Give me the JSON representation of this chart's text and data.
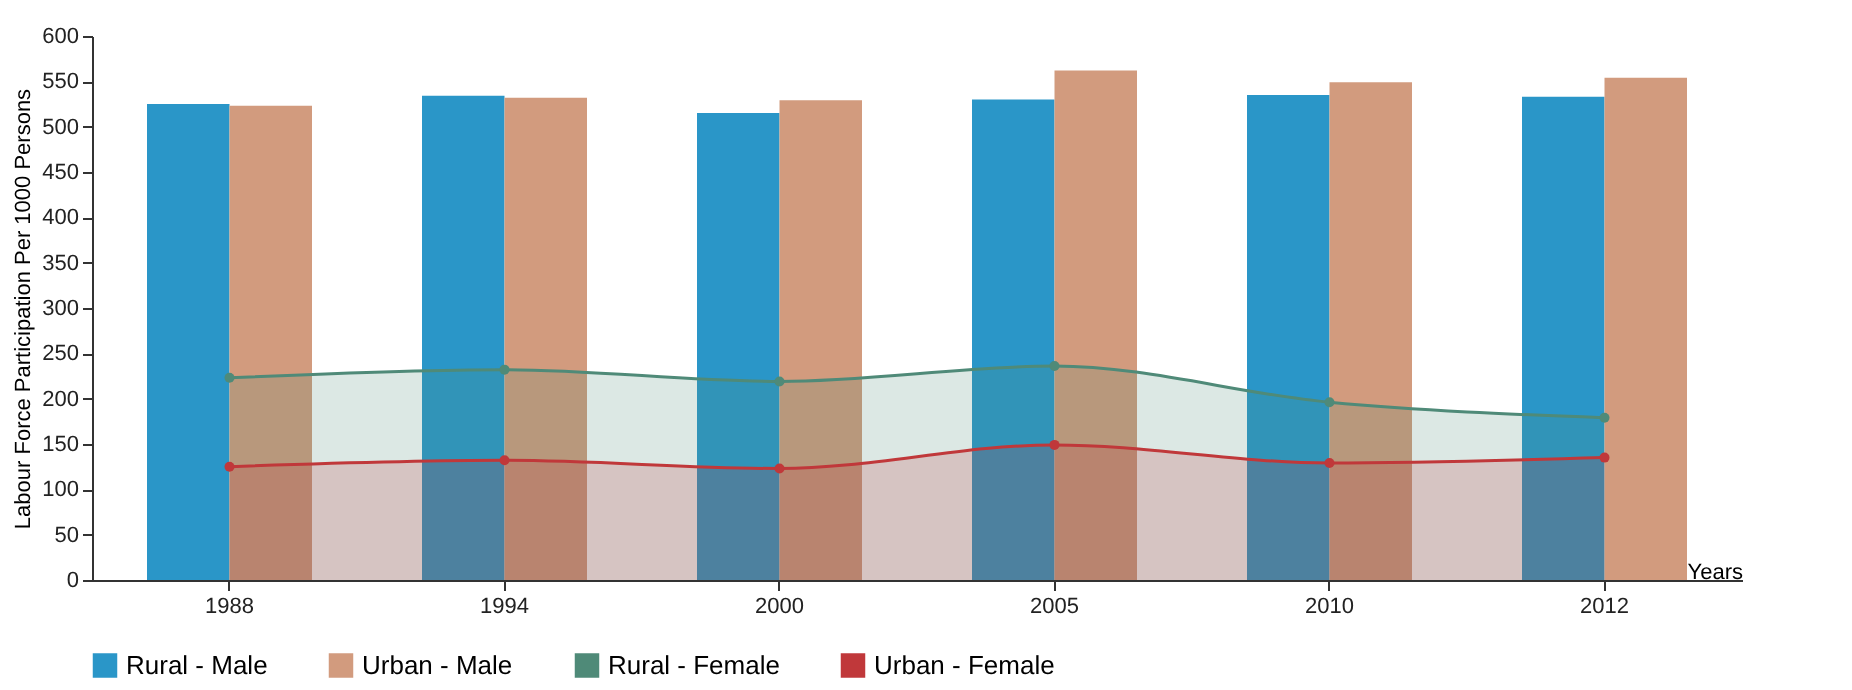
{
  "chart_data": {
    "type": "bar",
    "xlabel": "Years",
    "ylabel": "Labour Force Participation Per 1000 Persons",
    "categories": [
      "1988",
      "1994",
      "2000",
      "2005",
      "2010",
      "2012"
    ],
    "series": [
      {
        "name": "Rural - Male",
        "color": "#2a96c8",
        "values": [
          525,
          534,
          515,
          530,
          535,
          533
        ]
      },
      {
        "name": "Urban - Male",
        "color": "#d29b7e",
        "values": [
          523,
          532,
          529,
          562,
          549,
          554
        ]
      },
      {
        "name": "Rural - Female",
        "type": "area",
        "color": "#4f8a78",
        "values": [
          223,
          232,
          219,
          236,
          196,
          179
        ]
      },
      {
        "name": "Urban - Female",
        "type": "area",
        "color": "#c0383a",
        "values": [
          125,
          132,
          123,
          149,
          129,
          135
        ]
      }
    ],
    "ylim": [
      0,
      600
    ],
    "yticks": [
      0,
      50,
      100,
      150,
      200,
      250,
      300,
      350,
      400,
      450,
      500,
      550,
      600
    ],
    "grid": false,
    "legend": "bottom",
    "marker": "circle"
  }
}
